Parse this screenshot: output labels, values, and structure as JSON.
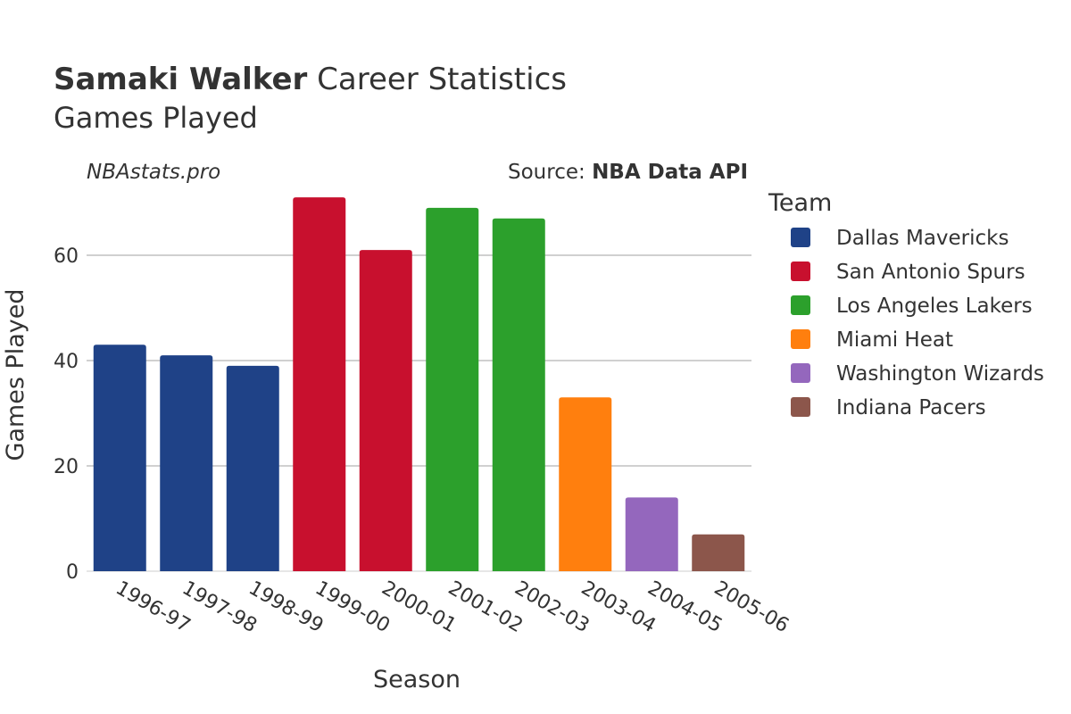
{
  "header": {
    "player_name": "Samaki Walker",
    "title_rest": " Career Statistics",
    "subtitle": "Games Played"
  },
  "credits": {
    "site": "NBAstats.pro",
    "source_prefix": "Source: ",
    "source_name": "NBA Data API"
  },
  "chart_data": {
    "type": "bar",
    "title": "Samaki Walker Career Statistics",
    "subtitle": "Games Played",
    "xlabel": "Season",
    "ylabel": "Games Played",
    "categories": [
      "1996-97",
      "1997-98",
      "1998-99",
      "1999-00",
      "2000-01",
      "2001-02",
      "2002-03",
      "2003-04",
      "2004-05",
      "2005-06"
    ],
    "values": [
      43,
      41,
      39,
      71,
      61,
      69,
      67,
      33,
      14,
      7
    ],
    "teams": [
      "Dallas Mavericks",
      "Dallas Mavericks",
      "Dallas Mavericks",
      "San Antonio Spurs",
      "San Antonio Spurs",
      "Los Angeles Lakers",
      "Los Angeles Lakers",
      "Miami Heat",
      "Washington Wizards",
      "Indiana Pacers"
    ],
    "yticks": [
      0,
      20,
      40,
      60
    ],
    "ylim": [
      0,
      75
    ],
    "grid": true,
    "legend": {
      "title": "Team",
      "placement": "right",
      "entries": [
        {
          "name": "Dallas Mavericks",
          "color": "#1f4287"
        },
        {
          "name": "San Antonio Spurs",
          "color": "#c8102e"
        },
        {
          "name": "Los Angeles Lakers",
          "color": "#2ca02c"
        },
        {
          "name": "Miami Heat",
          "color": "#ff7f0e"
        },
        {
          "name": "Washington Wizards",
          "color": "#9467bd"
        },
        {
          "name": "Indiana Pacers",
          "color": "#8c564b"
        }
      ]
    }
  }
}
